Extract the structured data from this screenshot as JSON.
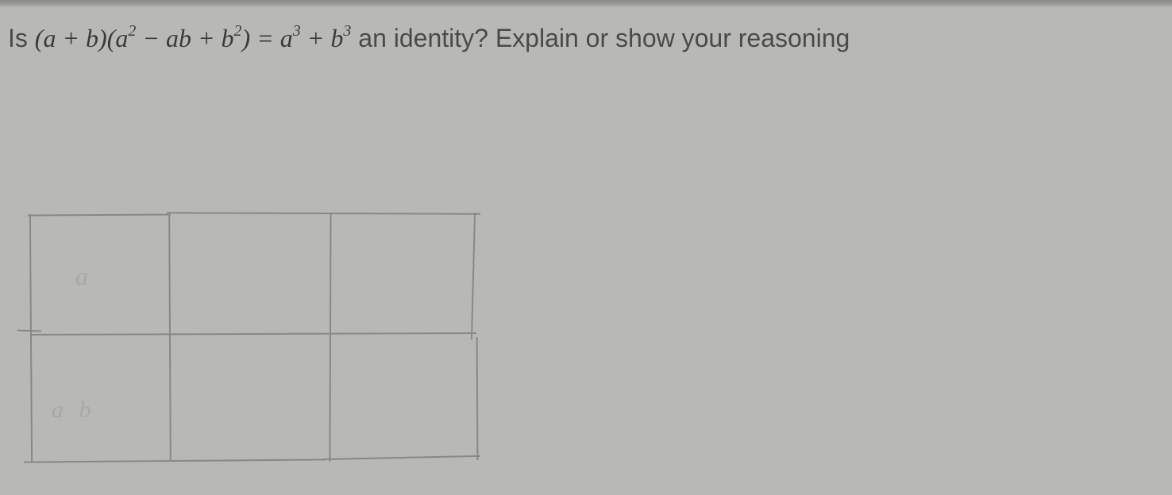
{
  "question": {
    "prefix": "Is ",
    "lparen": "(",
    "a": "a",
    "plus1": " + ",
    "b": "b",
    "rparen": ")",
    "lparen2": "(",
    "a2": "a",
    "exp2a": "2",
    "minus": " − ",
    "ab": "ab",
    "plus2": " + ",
    "b2": "b",
    "exp2b": "2",
    "rparen2": ")",
    "equals": " = ",
    "a3": "a",
    "exp3a": "3",
    "plus3": " + ",
    "b3": "b",
    "exp3b": "3",
    "suffix": " an identity? Explain or show your reasoning"
  },
  "sketch": {
    "type": "table-grid",
    "rows": 2,
    "cols": 3,
    "line_color": "#888884",
    "labels": {
      "row1_left": "a",
      "row2_left": "a b"
    }
  },
  "colors": {
    "background": "#b8b8b4",
    "text": "#3a3a38",
    "plain_text": "#4a4a48",
    "pencil": "#888884",
    "faint_pencil": "#a8a8a4"
  }
}
